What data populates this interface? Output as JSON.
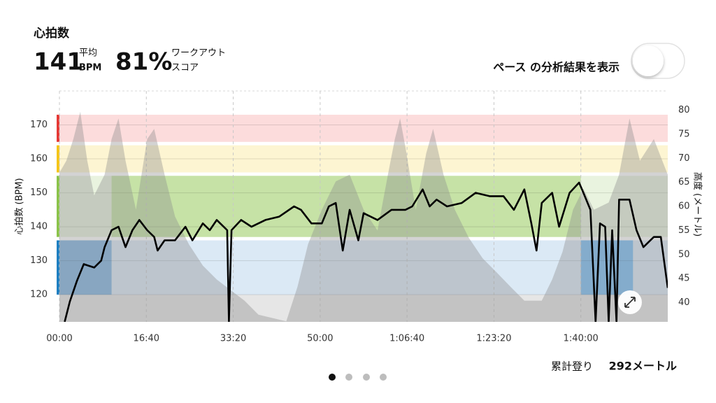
{
  "header": {
    "title": "心拍数",
    "avg_value": "141",
    "avg_label_top": "平均",
    "avg_label_bottom": "BPM",
    "score_value": "81%",
    "score_label_top": "ワークアウト",
    "score_label_bottom": "スコア"
  },
  "toggle": {
    "label": "ペース の分析結果を表示"
  },
  "footer": {
    "climb_label": "累計登り",
    "climb_value": "292メートル"
  },
  "chart_data": {
    "type": "line",
    "ylabel": "心拍数 (BPM)",
    "y2label": "高度 (メートル)",
    "xlim": [
      0,
      7000
    ],
    "xticks": [
      {
        "value": 0,
        "label": "00:00"
      },
      {
        "value": 1000,
        "label": "16:40"
      },
      {
        "value": 2000,
        "label": "33:20"
      },
      {
        "value": 3000,
        "label": "50:00"
      },
      {
        "value": 4000,
        "label": "1:06:40"
      },
      {
        "value": 5000,
        "label": "1:23:20"
      },
      {
        "value": 6000,
        "label": "1:40:00"
      }
    ],
    "ylim": [
      112,
      180
    ],
    "yticks": [
      120,
      130,
      140,
      150,
      160,
      170
    ],
    "y2lim": [
      36,
      84
    ],
    "y2ticks": [
      40,
      45,
      50,
      55,
      60,
      65,
      70,
      75,
      80
    ],
    "grid": true,
    "zones": [
      {
        "from": 165,
        "to": 173,
        "color": "#fcdcdc",
        "edge": "#e53935"
      },
      {
        "from": 156,
        "to": 164,
        "color": "#fdf5d2",
        "edge": "#f5c518"
      },
      {
        "from": 137,
        "to": 155,
        "color": "#e9f3df",
        "edge": "#8bc34a"
      },
      {
        "from": 120,
        "to": 136,
        "color": "#dbe9f5",
        "edge": "#1e7fc1"
      }
    ],
    "highlights": [
      {
        "zone": 3,
        "x": [
          0,
          600
        ],
        "color": "#86b6e3"
      },
      {
        "zone": 2,
        "x": [
          600,
          6000
        ],
        "color": "#c6e2a6"
      },
      {
        "zone": 3,
        "x": [
          6000,
          6600
        ],
        "color": "#80c0f4"
      }
    ],
    "series": [
      {
        "axis": "y2",
        "color": "rgba(140,140,140,0.38)",
        "x": [
          0,
          80,
          160,
          240,
          320,
          400,
          520,
          600,
          680,
          760,
          880,
          1010,
          1090,
          1210,
          1330,
          1490,
          1650,
          1810,
          1970,
          2130,
          2290,
          2450,
          2610,
          2740,
          2860,
          3020,
          3180,
          3340,
          3500,
          3660,
          3780,
          3860,
          3920,
          3980,
          4100,
          4220,
          4300,
          4420,
          4550,
          4710,
          4870,
          5030,
          5190,
          5350,
          5550,
          5670,
          5790,
          5910,
          6030,
          6150,
          6320,
          6440,
          6560,
          6680,
          6840,
          7000
        ],
        "values": [
          67,
          69.5,
          74,
          79.7,
          69.5,
          62.3,
          66.6,
          74,
          78.3,
          69.5,
          59.3,
          74,
          76.1,
          66.6,
          57.9,
          52.1,
          47.7,
          44.8,
          42.6,
          40.4,
          37.5,
          36.8,
          36.1,
          43.3,
          52.1,
          59.3,
          65.2,
          66.6,
          59.3,
          55,
          66.6,
          74,
          78.3,
          72.4,
          59.3,
          71,
          76.1,
          66.6,
          59.3,
          53.5,
          49.2,
          46.3,
          43.3,
          40.4,
          40.4,
          44.8,
          50.6,
          59.3,
          63.7,
          59.3,
          60.8,
          66.6,
          78.3,
          69.5,
          74,
          66.6
        ]
      },
      {
        "color": "#000000",
        "x": [
          60,
          120,
          200,
          280,
          400,
          480,
          520,
          600,
          680,
          760,
          840,
          920,
          1010,
          1090,
          1130,
          1210,
          1330,
          1450,
          1530,
          1650,
          1730,
          1810,
          1890,
          1930,
          1950,
          1980,
          2090,
          2210,
          2370,
          2530,
          2700,
          2780,
          2900,
          3020,
          3100,
          3180,
          3260,
          3340,
          3440,
          3500,
          3660,
          3820,
          3980,
          4060,
          4180,
          4260,
          4340,
          4460,
          4630,
          4790,
          4950,
          5110,
          5230,
          5350,
          5430,
          5490,
          5550,
          5670,
          5750,
          5870,
          5980,
          6030,
          6110,
          6170,
          6220,
          6280,
          6320,
          6360,
          6410,
          6440,
          6560,
          6640,
          6720,
          6840,
          6920,
          7000
        ],
        "values": [
          112,
          118,
          124,
          129,
          128,
          130,
          134,
          139,
          140,
          134,
          139,
          142,
          139,
          137,
          133,
          136,
          136,
          140,
          136,
          141,
          139,
          142,
          140,
          139,
          112,
          139,
          142,
          140,
          142,
          143,
          146,
          145,
          141,
          141,
          146,
          147,
          133,
          145,
          136,
          144,
          142,
          145,
          145,
          146,
          151,
          146,
          148,
          146,
          147,
          150,
          149,
          149,
          145,
          151,
          141,
          133,
          147,
          150,
          140,
          150,
          153,
          150,
          145,
          112,
          141,
          140,
          112,
          139,
          112,
          148,
          148,
          139,
          134,
          137,
          137,
          122
        ]
      }
    ]
  }
}
